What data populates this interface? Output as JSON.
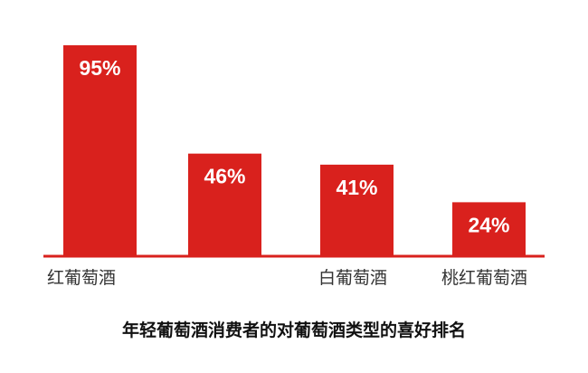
{
  "chart_data": {
    "type": "bar",
    "title": "年轻葡萄酒消费者的对葡萄酒类型的喜好排名",
    "categories": [
      "红葡萄酒",
      "",
      "白葡萄酒",
      "桃红葡萄酒"
    ],
    "values": [
      95,
      46,
      41,
      24
    ],
    "data_labels": [
      "95%",
      "46%",
      "41%",
      "24%"
    ],
    "ylim": [
      0,
      100
    ],
    "grid": false,
    "bar_color": "#d9211d",
    "watermark": "exact"
  }
}
